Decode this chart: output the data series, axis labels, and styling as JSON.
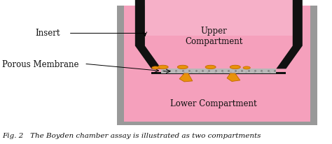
{
  "fig_bg": "#ffffff",
  "gray_outer": "#999999",
  "gray_inner_bg": "#d8d8d8",
  "pink_fill": "#f5a0bc",
  "insert_black": "#111111",
  "membrane_gray": "#b8b8b8",
  "cell_orange": "#e8920a",
  "cell_edge": "#c06800",
  "caption": "Fig. 2   The Boyden chamber assay is illustrated as two compartments",
  "label_upper": "Upper\nCompartment",
  "label_lower": "Lower Compartment",
  "label_insert": "Insert",
  "label_membrane": "Porous Membrane",
  "font_size_label": 8.5,
  "font_size_caption": 7.5
}
